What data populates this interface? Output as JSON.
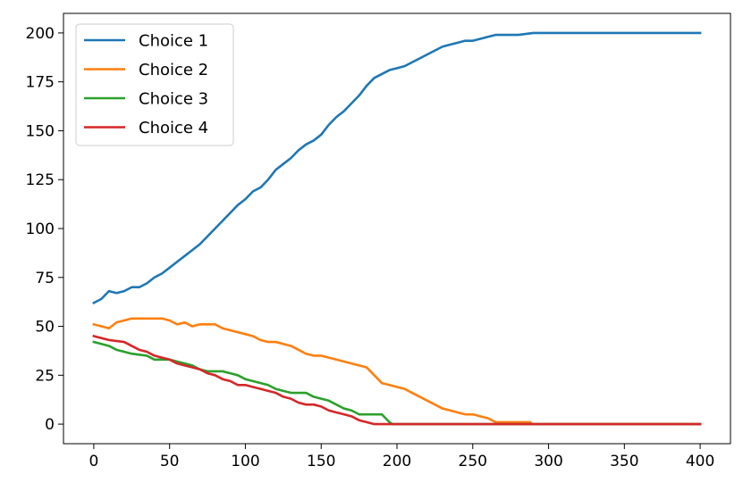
{
  "chart_data": {
    "type": "line",
    "title": "",
    "xlabel": "",
    "ylabel": "",
    "xlim": [
      -20,
      420
    ],
    "ylim": [
      -10,
      210
    ],
    "x_ticks": [
      0,
      50,
      100,
      150,
      200,
      250,
      300,
      350,
      400
    ],
    "y_ticks": [
      0,
      25,
      50,
      75,
      100,
      125,
      150,
      175,
      200
    ],
    "grid": false,
    "legend_position": "upper left",
    "series": [
      {
        "name": "Choice 1",
        "color": "#1f77b4",
        "points": [
          [
            0,
            62
          ],
          [
            5,
            64
          ],
          [
            10,
            68
          ],
          [
            15,
            67
          ],
          [
            20,
            68
          ],
          [
            25,
            70
          ],
          [
            30,
            70
          ],
          [
            35,
            72
          ],
          [
            40,
            75
          ],
          [
            45,
            77
          ],
          [
            50,
            80
          ],
          [
            55,
            83
          ],
          [
            60,
            86
          ],
          [
            65,
            89
          ],
          [
            70,
            92
          ],
          [
            75,
            96
          ],
          [
            80,
            100
          ],
          [
            85,
            104
          ],
          [
            90,
            108
          ],
          [
            95,
            112
          ],
          [
            100,
            115
          ],
          [
            105,
            119
          ],
          [
            110,
            121
          ],
          [
            115,
            125
          ],
          [
            120,
            130
          ],
          [
            125,
            133
          ],
          [
            130,
            136
          ],
          [
            135,
            140
          ],
          [
            140,
            143
          ],
          [
            145,
            145
          ],
          [
            150,
            148
          ],
          [
            155,
            153
          ],
          [
            160,
            157
          ],
          [
            165,
            160
          ],
          [
            170,
            164
          ],
          [
            175,
            168
          ],
          [
            180,
            173
          ],
          [
            185,
            177
          ],
          [
            190,
            179
          ],
          [
            195,
            181
          ],
          [
            200,
            182
          ],
          [
            205,
            183
          ],
          [
            210,
            185
          ],
          [
            215,
            187
          ],
          [
            220,
            189
          ],
          [
            225,
            191
          ],
          [
            230,
            193
          ],
          [
            235,
            194
          ],
          [
            240,
            195
          ],
          [
            245,
            196
          ],
          [
            250,
            196
          ],
          [
            255,
            197
          ],
          [
            260,
            198
          ],
          [
            265,
            199
          ],
          [
            270,
            199
          ],
          [
            280,
            199
          ],
          [
            290,
            200
          ],
          [
            300,
            200
          ],
          [
            350,
            200
          ],
          [
            400,
            200
          ]
        ]
      },
      {
        "name": "Choice 2",
        "color": "#ff7f0e",
        "points": [
          [
            0,
            51
          ],
          [
            5,
            50
          ],
          [
            10,
            49
          ],
          [
            15,
            52
          ],
          [
            20,
            53
          ],
          [
            25,
            54
          ],
          [
            35,
            54
          ],
          [
            45,
            54
          ],
          [
            50,
            53
          ],
          [
            55,
            51
          ],
          [
            60,
            52
          ],
          [
            65,
            50
          ],
          [
            70,
            51
          ],
          [
            80,
            51
          ],
          [
            85,
            49
          ],
          [
            90,
            48
          ],
          [
            95,
            47
          ],
          [
            100,
            46
          ],
          [
            105,
            45
          ],
          [
            110,
            43
          ],
          [
            115,
            42
          ],
          [
            120,
            42
          ],
          [
            125,
            41
          ],
          [
            130,
            40
          ],
          [
            135,
            38
          ],
          [
            140,
            36
          ],
          [
            145,
            35
          ],
          [
            150,
            35
          ],
          [
            155,
            34
          ],
          [
            160,
            33
          ],
          [
            165,
            32
          ],
          [
            170,
            31
          ],
          [
            175,
            30
          ],
          [
            180,
            29
          ],
          [
            185,
            25
          ],
          [
            190,
            21
          ],
          [
            195,
            20
          ],
          [
            200,
            19
          ],
          [
            205,
            18
          ],
          [
            210,
            16
          ],
          [
            215,
            14
          ],
          [
            220,
            12
          ],
          [
            225,
            10
          ],
          [
            230,
            8
          ],
          [
            235,
            7
          ],
          [
            240,
            6
          ],
          [
            245,
            5
          ],
          [
            250,
            5
          ],
          [
            255,
            4
          ],
          [
            260,
            3
          ],
          [
            265,
            1
          ],
          [
            270,
            1
          ],
          [
            280,
            1
          ],
          [
            288,
            1
          ],
          [
            289,
            0
          ],
          [
            300,
            0
          ],
          [
            350,
            0
          ],
          [
            400,
            0
          ]
        ]
      },
      {
        "name": "Choice 3",
        "color": "#2ca02c",
        "points": [
          [
            0,
            42
          ],
          [
            5,
            41
          ],
          [
            10,
            40
          ],
          [
            15,
            38
          ],
          [
            20,
            37
          ],
          [
            25,
            36
          ],
          [
            35,
            35
          ],
          [
            40,
            33
          ],
          [
            50,
            33
          ],
          [
            55,
            32
          ],
          [
            60,
            31
          ],
          [
            65,
            30
          ],
          [
            70,
            28
          ],
          [
            75,
            27
          ],
          [
            85,
            27
          ],
          [
            90,
            26
          ],
          [
            95,
            25
          ],
          [
            100,
            23
          ],
          [
            105,
            22
          ],
          [
            110,
            21
          ],
          [
            115,
            20
          ],
          [
            120,
            18
          ],
          [
            125,
            17
          ],
          [
            130,
            16
          ],
          [
            140,
            16
          ],
          [
            145,
            14
          ],
          [
            150,
            13
          ],
          [
            155,
            12
          ],
          [
            160,
            10
          ],
          [
            165,
            8
          ],
          [
            170,
            7
          ],
          [
            175,
            5
          ],
          [
            185,
            5
          ],
          [
            190,
            5
          ],
          [
            195,
            1
          ],
          [
            197,
            0
          ],
          [
            200,
            0
          ],
          [
            250,
            0
          ],
          [
            300,
            0
          ],
          [
            350,
            0
          ],
          [
            400,
            0
          ]
        ]
      },
      {
        "name": "Choice 4",
        "color": "#d62728",
        "points": [
          [
            0,
            45
          ],
          [
            5,
            44
          ],
          [
            10,
            43
          ],
          [
            20,
            42
          ],
          [
            25,
            40
          ],
          [
            30,
            38
          ],
          [
            35,
            37
          ],
          [
            40,
            35
          ],
          [
            45,
            34
          ],
          [
            50,
            33
          ],
          [
            55,
            31
          ],
          [
            60,
            30
          ],
          [
            65,
            29
          ],
          [
            70,
            28
          ],
          [
            75,
            26
          ],
          [
            80,
            25
          ],
          [
            85,
            23
          ],
          [
            90,
            22
          ],
          [
            95,
            20
          ],
          [
            100,
            20
          ],
          [
            105,
            19
          ],
          [
            110,
            18
          ],
          [
            115,
            17
          ],
          [
            120,
            16
          ],
          [
            125,
            14
          ],
          [
            130,
            13
          ],
          [
            135,
            11
          ],
          [
            140,
            10
          ],
          [
            145,
            10
          ],
          [
            150,
            9
          ],
          [
            155,
            7
          ],
          [
            160,
            6
          ],
          [
            165,
            5
          ],
          [
            170,
            4
          ],
          [
            175,
            2
          ],
          [
            180,
            1
          ],
          [
            185,
            0
          ],
          [
            200,
            0
          ],
          [
            250,
            0
          ],
          [
            300,
            0
          ],
          [
            350,
            0
          ],
          [
            400,
            0
          ]
        ]
      }
    ]
  }
}
